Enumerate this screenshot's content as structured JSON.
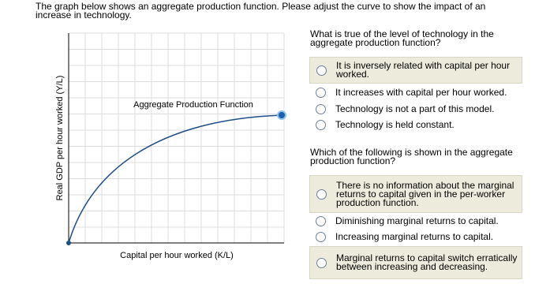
{
  "instruction": "The graph below shows an aggregate production function. Please adjust the curve to show the impact of an increase in technology.",
  "graph": {
    "y_axis_label": "Real GDP per hour worked (Y/L)",
    "x_axis_label": "Capital per hour worked (K/L)",
    "curve_label": "Aggregate Production Function"
  },
  "questions": [
    {
      "prompt": "What is true of the level of technology in the aggregate production function?",
      "options": [
        "It is inversely related with capital per hour worked.",
        "It increases with capital per hour worked.",
        "Technology is not a part of this model.",
        "Technology is held constant."
      ]
    },
    {
      "prompt": "Which of the following is shown in the aggregate production function?",
      "options": [
        "There is no information about the marginal returns to capital given in the per-worker production function.",
        "Diminishing marginal returns to capital.",
        "Increasing marginal returns to capital.",
        "Marginal returns to capital switch erratically between increasing and decreasing."
      ]
    }
  ]
}
